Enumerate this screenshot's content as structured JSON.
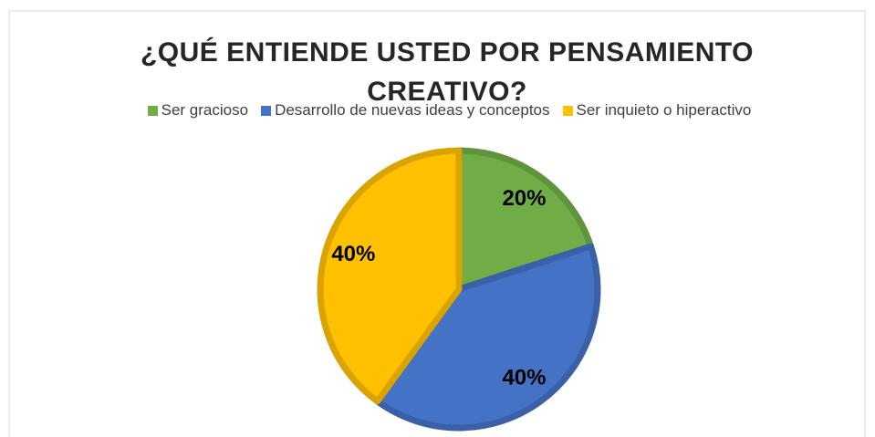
{
  "chart_data": {
    "type": "pie",
    "title": "¿QUÉ ENTIENDE USTED POR PENSAMIENTO CREATIVO?",
    "categories": [
      "Ser gracioso",
      "Desarrollo de nuevas ideas y conceptos",
      "Ser inquieto o hiperactivo"
    ],
    "values": [
      20,
      40,
      40
    ],
    "value_labels": [
      "20%",
      "40%",
      "40%"
    ],
    "colors": [
      "#70ad47",
      "#4472c4",
      "#ffc000"
    ],
    "legend": "top"
  }
}
